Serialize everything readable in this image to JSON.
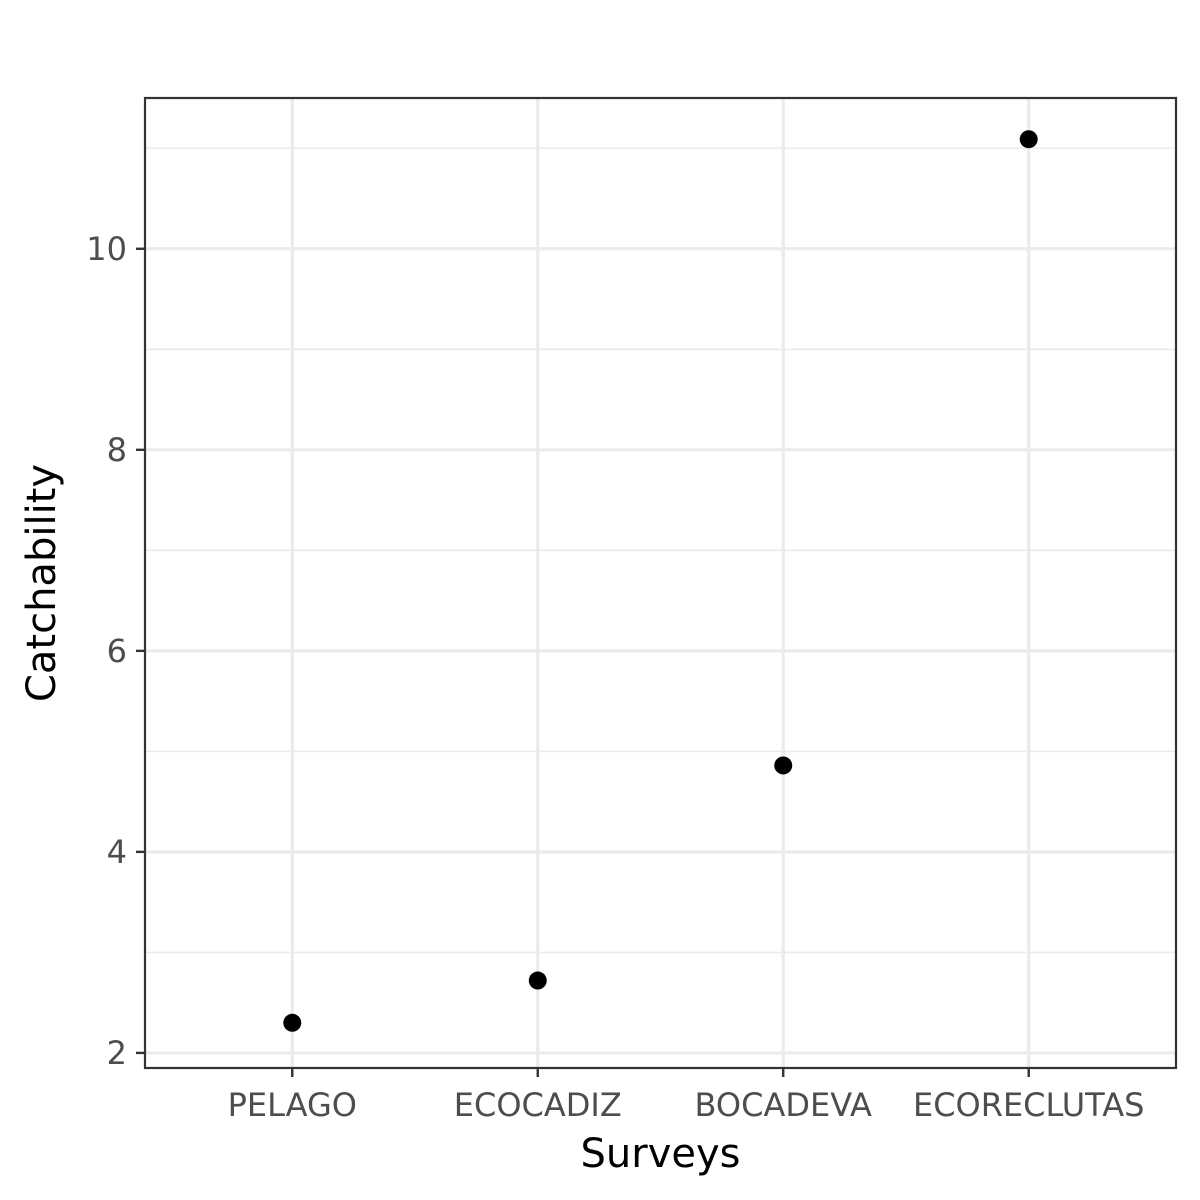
{
  "chart_data": {
    "type": "scatter",
    "title": "",
    "xlabel": "Surveys",
    "ylabel": "Catchability",
    "categories": [
      "PELAGO",
      "ECOCADIZ",
      "BOCADEVA",
      "ECORECLUTAS"
    ],
    "values": [
      2.3,
      2.72,
      4.86,
      11.09
    ],
    "ylim": [
      1.85,
      11.5
    ],
    "yticks": [
      2,
      4,
      6,
      8,
      10
    ],
    "y_minor_ticks": [
      3,
      5,
      7,
      9,
      11
    ],
    "grid": true,
    "colors": {
      "point": "#000000",
      "grid_major": "#ebebeb",
      "grid_minor": "#ebebeb",
      "panel_border": "#333333",
      "tick_text": "#4d4d4d",
      "axis_title": "#000000"
    }
  }
}
